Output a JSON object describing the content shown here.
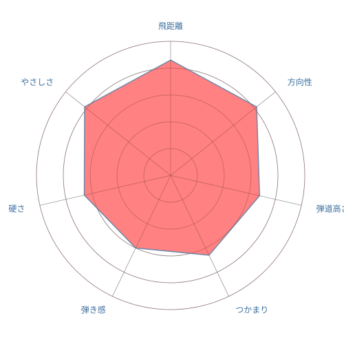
{
  "chart_data": {
    "type": "radar",
    "categories": [
      "飛距離",
      "方向性",
      "弾道高さ",
      "つかまり",
      "弾き感",
      "硬さ",
      "やさしさ"
    ],
    "series": [
      {
        "values": [
          4.3,
          4.1,
          3.4,
          3.3,
          3.0,
          3.3,
          4.1
        ]
      }
    ],
    "scale": {
      "min": 0,
      "max": 5,
      "rings": 5
    },
    "colors": {
      "fill": "#ff6b6b",
      "stroke": "#6f87a8",
      "grid": "#999999",
      "label": "#3d6fa0"
    }
  }
}
